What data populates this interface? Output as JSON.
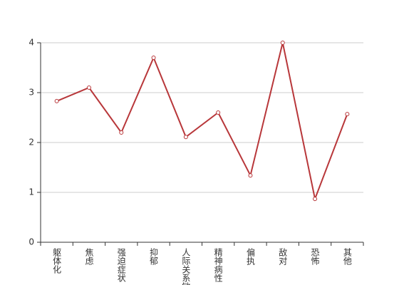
{
  "chart_data": {
    "type": "line",
    "categories": [
      "躯体化",
      "焦虑",
      "强迫症状",
      "抑郁",
      "人际关系敏感",
      "精神病性",
      "偏执",
      "敌对",
      "恐怖",
      "其他"
    ],
    "series": [
      {
        "name": "",
        "color": "#b8373a",
        "values": [
          2.83,
          3.1,
          2.2,
          3.7,
          2.11,
          2.6,
          1.34,
          4.0,
          0.87,
          2.57
        ]
      }
    ],
    "ylim": [
      0,
      4
    ],
    "yticks": [
      0,
      1,
      2,
      3,
      4
    ],
    "grid": true
  }
}
